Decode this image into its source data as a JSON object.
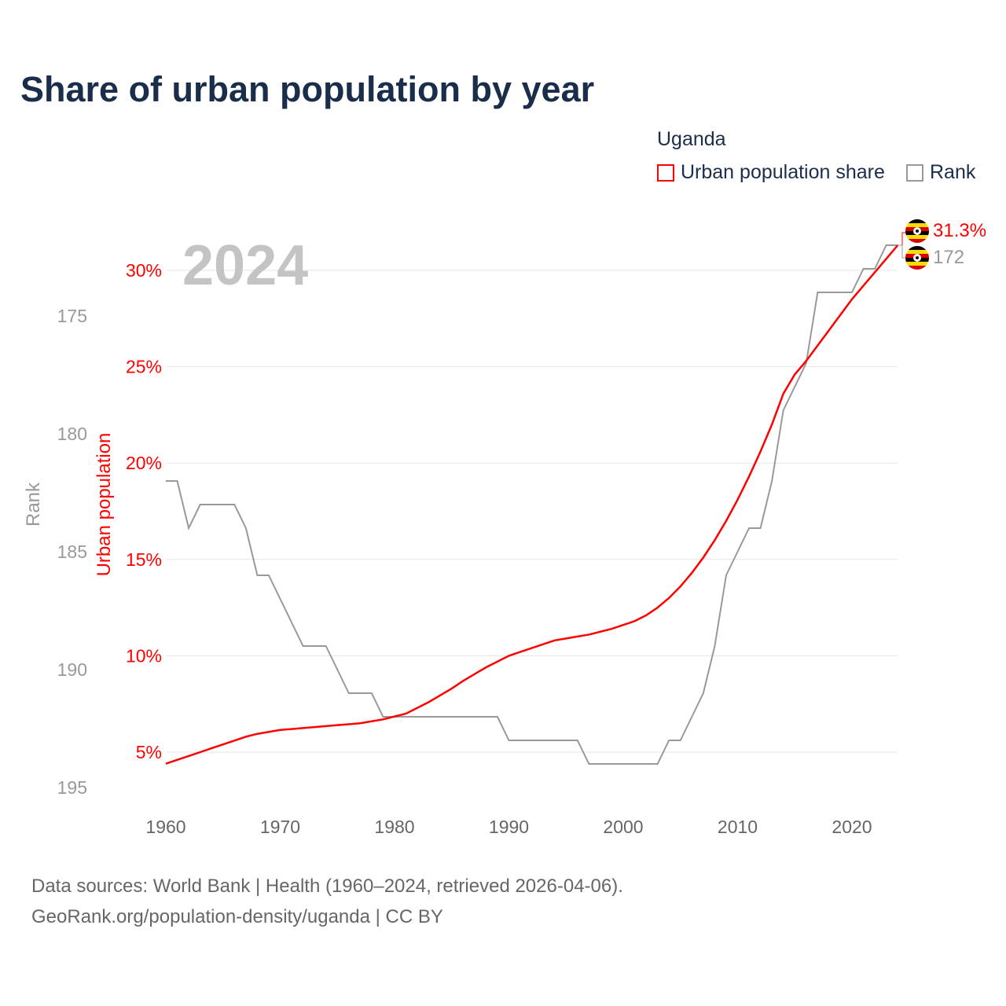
{
  "title": "Share of urban population by year",
  "legend": {
    "country": "Uganda",
    "items": [
      {
        "label": "Urban population share",
        "color": "#ff0000"
      },
      {
        "label": "Rank",
        "color": "#999999"
      }
    ]
  },
  "year_watermark": "2024",
  "end_labels": {
    "urban": "31.3%",
    "rank": "172",
    "flag_icon": "uganda-flag"
  },
  "footer": {
    "line1": "Data sources: World Bank | Health (1960–2024, retrieved 2026-04-06).",
    "line2": "GeoRank.org/population-density/uganda | CC BY"
  },
  "chart_data": {
    "type": "line",
    "title": "Share of urban population by year",
    "xlabel": "",
    "ylabel": "Urban population",
    "y2label": "Rank",
    "xlim": [
      1960,
      2024
    ],
    "ylim": [
      4.4,
      32
    ],
    "y2lim": [
      196,
      171
    ],
    "x_ticks": [
      "1960",
      "1970",
      "1980",
      "1990",
      "2000",
      "2010",
      "2020"
    ],
    "x_tick_values": [
      1960,
      1970,
      1980,
      1990,
      2000,
      2010,
      2020
    ],
    "y_ticks": [
      "5%",
      "10%",
      "15%",
      "20%",
      "25%",
      "30%"
    ],
    "y_tick_values": [
      5,
      10,
      15,
      20,
      25,
      30
    ],
    "y2_ticks": [
      "175",
      "180",
      "185",
      "190",
      "195"
    ],
    "y2_tick_values": [
      175,
      180,
      185,
      190,
      195
    ],
    "x": [
      1960,
      1961,
      1962,
      1963,
      1964,
      1965,
      1966,
      1967,
      1968,
      1969,
      1970,
      1971,
      1972,
      1973,
      1974,
      1975,
      1976,
      1977,
      1978,
      1979,
      1980,
      1981,
      1982,
      1983,
      1984,
      1985,
      1986,
      1987,
      1988,
      1989,
      1990,
      1991,
      1992,
      1993,
      1994,
      1995,
      1996,
      1997,
      1998,
      1999,
      2000,
      2001,
      2002,
      2003,
      2004,
      2005,
      2006,
      2007,
      2008,
      2009,
      2010,
      2011,
      2012,
      2013,
      2014,
      2015,
      2016,
      2017,
      2018,
      2019,
      2020,
      2021,
      2022,
      2023,
      2024
    ],
    "series": [
      {
        "name": "Urban population share",
        "axis": "left",
        "color": "#ff0000",
        "values": [
          4.4,
          4.6,
          4.8,
          5.0,
          5.2,
          5.4,
          5.6,
          5.8,
          5.95,
          6.05,
          6.15,
          6.2,
          6.25,
          6.3,
          6.35,
          6.4,
          6.45,
          6.5,
          6.6,
          6.7,
          6.85,
          7.0,
          7.3,
          7.6,
          7.95,
          8.3,
          8.7,
          9.05,
          9.4,
          9.7,
          10.0,
          10.2,
          10.4,
          10.6,
          10.8,
          10.9,
          11.0,
          11.1,
          11.25,
          11.4,
          11.6,
          11.8,
          12.1,
          12.5,
          13.0,
          13.6,
          14.3,
          15.1,
          16.0,
          17.0,
          18.1,
          19.3,
          20.6,
          22.0,
          23.6,
          24.6,
          25.3,
          26.1,
          26.9,
          27.7,
          28.5,
          29.2,
          29.9,
          30.6,
          31.3
        ]
      },
      {
        "name": "Rank",
        "axis": "right",
        "color": "#999999",
        "values": [
          182,
          182,
          184,
          183,
          183,
          183,
          183,
          184,
          186,
          186,
          187,
          188,
          189,
          189,
          189,
          190,
          191,
          191,
          191,
          192,
          192,
          192,
          192,
          192,
          192,
          192,
          192,
          192,
          192,
          192,
          193,
          193,
          193,
          193,
          193,
          193,
          193,
          194,
          194,
          194,
          194,
          194,
          194,
          194,
          193,
          193,
          192,
          191,
          189,
          186,
          185,
          184,
          184,
          182,
          179,
          178,
          177,
          174,
          174,
          174,
          174,
          173,
          173,
          172,
          172
        ]
      }
    ],
    "grid": true
  }
}
